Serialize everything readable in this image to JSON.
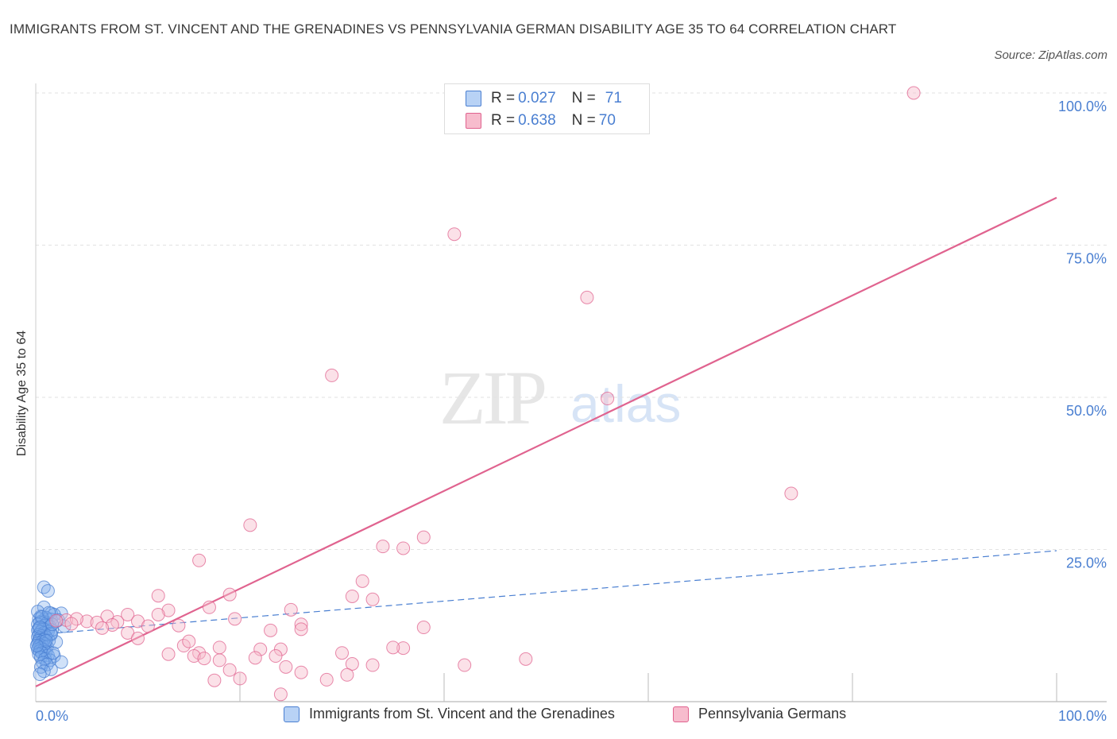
{
  "title": "IMMIGRANTS FROM ST. VINCENT AND THE GRENADINES VS PENNSYLVANIA GERMAN DISABILITY AGE 35 TO 64 CORRELATION CHART",
  "source": "Source: ZipAtlas.com",
  "watermark": {
    "zip": "ZIP",
    "atlas": "atlas"
  },
  "colors": {
    "blue": "#4a7fd1",
    "blue_fill": "#b8d2f5",
    "pink": "#e0638f",
    "pink_fill": "#f7bccd"
  },
  "legend": {
    "rows": [
      {
        "r_label": "R = ",
        "r_value": "0.027",
        "n_label": "N = ",
        "n_value": "71"
      },
      {
        "r_label": "R = ",
        "r_value": "0.638",
        "n_label": "N = ",
        "n_value": "70"
      }
    ]
  },
  "bottom_legend": [
    "Immigrants from St. Vincent and the Grenadines",
    "Pennsylvania Germans"
  ],
  "chart_data": {
    "type": "scatter",
    "title": "IMMIGRANTS FROM ST. VINCENT AND THE GRENADINES VS PENNSYLVANIA GERMAN DISABILITY AGE 35 TO 64 CORRELATION CHART",
    "xlabel": "",
    "ylabel": "Disability Age 35 to 64",
    "xlim": [
      0,
      100
    ],
    "ylim": [
      0,
      100
    ],
    "x_tick_labels": [
      "0.0%",
      "100.0%"
    ],
    "y_tick_labels": [
      "100.0%",
      "75.0%",
      "50.0%",
      "25.0%"
    ],
    "y_ticks": [
      100,
      75,
      50,
      25
    ],
    "grid": true,
    "series": [
      {
        "name": "Immigrants from St. Vincent and the Grenadines",
        "color": "#4a7fd1",
        "points": [
          [
            0.8,
            18.8
          ],
          [
            1.2,
            18.2
          ],
          [
            0.8,
            15.5
          ],
          [
            2.5,
            14.5
          ],
          [
            1.5,
            14.5
          ],
          [
            1.8,
            14.3
          ],
          [
            0.5,
            14.0
          ],
          [
            1.0,
            13.8
          ],
          [
            0.3,
            13.6
          ],
          [
            1.5,
            13.5
          ],
          [
            0.6,
            13.2
          ],
          [
            2.0,
            13.2
          ],
          [
            0.4,
            13.0
          ],
          [
            1.1,
            12.9
          ],
          [
            0.2,
            12.7
          ],
          [
            0.9,
            12.5
          ],
          [
            1.4,
            12.3
          ],
          [
            0.3,
            12.0
          ],
          [
            0.7,
            12.0
          ],
          [
            1.6,
            11.8
          ],
          [
            0.2,
            11.7
          ],
          [
            0.5,
            11.5
          ],
          [
            1.2,
            11.5
          ],
          [
            0.8,
            11.3
          ],
          [
            0.3,
            11.0
          ],
          [
            1.5,
            11.0
          ],
          [
            0.6,
            10.8
          ],
          [
            0.2,
            10.6
          ],
          [
            1.0,
            10.6
          ],
          [
            0.4,
            10.4
          ],
          [
            0.8,
            10.2
          ],
          [
            0.3,
            10.0
          ],
          [
            1.3,
            10.0
          ],
          [
            0.6,
            9.8
          ],
          [
            0.2,
            9.6
          ],
          [
            0.9,
            9.5
          ],
          [
            0.4,
            9.3
          ],
          [
            0.7,
            9.1
          ],
          [
            0.3,
            9.0
          ],
          [
            1.1,
            9.0
          ],
          [
            0.5,
            8.8
          ],
          [
            0.2,
            8.6
          ],
          [
            0.8,
            8.5
          ],
          [
            0.4,
            8.3
          ],
          [
            1.0,
            8.2
          ],
          [
            0.6,
            8.0
          ],
          [
            0.3,
            7.8
          ],
          [
            1.2,
            7.6
          ],
          [
            1.8,
            7.5
          ],
          [
            0.5,
            7.3
          ],
          [
            0.9,
            7.0
          ],
          [
            1.4,
            6.8
          ],
          [
            2.5,
            6.5
          ],
          [
            0.7,
            6.4
          ],
          [
            1.1,
            6.1
          ],
          [
            0.5,
            5.7
          ],
          [
            1.5,
            5.3
          ],
          [
            0.8,
            5.0
          ],
          [
            0.4,
            4.5
          ],
          [
            1.7,
            8.0
          ],
          [
            2.0,
            9.8
          ],
          [
            1.5,
            11.2
          ],
          [
            0.2,
            14.8
          ],
          [
            0.6,
            13.9
          ],
          [
            1.3,
            14.6
          ],
          [
            2.2,
            13.4
          ],
          [
            0.4,
            12.2
          ],
          [
            1.0,
            10.0
          ],
          [
            0.1,
            9.2
          ],
          [
            1.6,
            12.7
          ],
          [
            2.8,
            12.4
          ]
        ],
        "trendline": {
          "x": [
            0,
            100
          ],
          "y": [
            11.0,
            24.8
          ],
          "style": "dashed"
        }
      },
      {
        "name": "Pennsylvania Germans",
        "color": "#e0638f",
        "points": [
          [
            46.0,
            100.0
          ],
          [
            50.0,
            100.0
          ],
          [
            86.0,
            100.0
          ],
          [
            41.0,
            76.8
          ],
          [
            54.0,
            66.4
          ],
          [
            29.0,
            53.6
          ],
          [
            56.0,
            49.8
          ],
          [
            74.0,
            34.2
          ],
          [
            21.0,
            29.0
          ],
          [
            38.0,
            27.0
          ],
          [
            34.0,
            25.5
          ],
          [
            36.0,
            25.2
          ],
          [
            16.0,
            23.2
          ],
          [
            32.0,
            19.8
          ],
          [
            12.0,
            17.4
          ],
          [
            19.0,
            17.6
          ],
          [
            31.0,
            17.3
          ],
          [
            33.0,
            16.8
          ],
          [
            17.0,
            15.5
          ],
          [
            25.0,
            15.1
          ],
          [
            13.0,
            15.0
          ],
          [
            12.0,
            14.3
          ],
          [
            7.0,
            14.0
          ],
          [
            9.0,
            14.3
          ],
          [
            3.0,
            13.4
          ],
          [
            5.0,
            13.2
          ],
          [
            6.0,
            13.0
          ],
          [
            4.0,
            13.6
          ],
          [
            8.0,
            13.1
          ],
          [
            10.0,
            13.2
          ],
          [
            2.0,
            13.3
          ],
          [
            19.5,
            13.6
          ],
          [
            26.0,
            12.7
          ],
          [
            7.5,
            12.6
          ],
          [
            11.0,
            12.4
          ],
          [
            14.0,
            12.5
          ],
          [
            6.5,
            12.1
          ],
          [
            3.5,
            12.8
          ],
          [
            26.0,
            11.9
          ],
          [
            23.0,
            11.7
          ],
          [
            9.0,
            11.3
          ],
          [
            10.0,
            10.4
          ],
          [
            14.5,
            9.2
          ],
          [
            15.0,
            9.9
          ],
          [
            18.0,
            8.9
          ],
          [
            22.0,
            8.6
          ],
          [
            16.0,
            8.0
          ],
          [
            24.0,
            8.6
          ],
          [
            30.0,
            8.0
          ],
          [
            36.0,
            8.8
          ],
          [
            13.0,
            7.8
          ],
          [
            15.5,
            7.5
          ],
          [
            16.5,
            7.1
          ],
          [
            21.5,
            7.2
          ],
          [
            23.5,
            7.5
          ],
          [
            31.0,
            6.2
          ],
          [
            18.0,
            6.8
          ],
          [
            33.0,
            6.0
          ],
          [
            42.0,
            6.0
          ],
          [
            48.0,
            7.0
          ],
          [
            19.0,
            5.2
          ],
          [
            24.5,
            5.7
          ],
          [
            26.0,
            4.8
          ],
          [
            30.5,
            4.4
          ],
          [
            17.5,
            3.5
          ],
          [
            24.0,
            1.2
          ],
          [
            20.0,
            3.8
          ],
          [
            28.5,
            3.6
          ],
          [
            35.0,
            8.9
          ],
          [
            38.0,
            12.2
          ]
        ],
        "trendline": {
          "x": [
            0,
            100
          ],
          "y": [
            2.5,
            82.8
          ],
          "style": "solid"
        }
      }
    ]
  }
}
